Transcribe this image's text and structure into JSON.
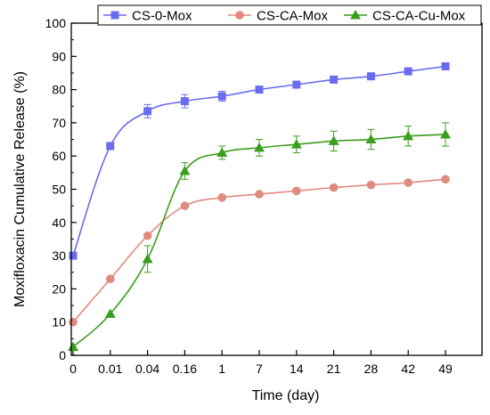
{
  "chart_data": {
    "type": "line",
    "xlabel": "Time (day)",
    "ylabel": "Moxifloxacin Cumulative Release (%)",
    "categories": [
      "0",
      "0.01",
      "0.04",
      "0.16",
      "1",
      "7",
      "14",
      "21",
      "28",
      "42",
      "49"
    ],
    "ylim": [
      0,
      100
    ],
    "yticks": [
      0,
      10,
      20,
      30,
      40,
      50,
      60,
      70,
      80,
      90,
      100
    ],
    "legend_position": "top-right",
    "grid": false,
    "series": [
      {
        "name": "CS-0-Mox",
        "color": "#6a6cf0",
        "marker": "square",
        "values": [
          30,
          63,
          73.5,
          76.5,
          78,
          80,
          81.5,
          83,
          84,
          85.5,
          87
        ],
        "errors": [
          0,
          0,
          2,
          2,
          1.5,
          1,
          1,
          1,
          1,
          1,
          1
        ]
      },
      {
        "name": "CS-CA-Mox",
        "color": "#e08a80",
        "marker": "circle",
        "values": [
          10,
          23,
          36,
          45,
          47.5,
          48.5,
          49.5,
          50.5,
          51.3,
          52,
          53
        ],
        "errors": [
          0,
          0,
          0,
          0,
          0,
          0,
          0,
          0,
          0,
          0,
          0
        ]
      },
      {
        "name": "CS-CA-Cu-Mox",
        "color": "#3b9e1c",
        "marker": "triangle",
        "values": [
          2.5,
          12.5,
          29,
          55.5,
          61,
          62.5,
          63.5,
          64.5,
          65,
          66,
          66.5
        ],
        "errors": [
          0,
          0,
          4,
          2.5,
          2,
          2.5,
          2.5,
          3,
          3,
          3,
          3.5
        ]
      }
    ]
  }
}
